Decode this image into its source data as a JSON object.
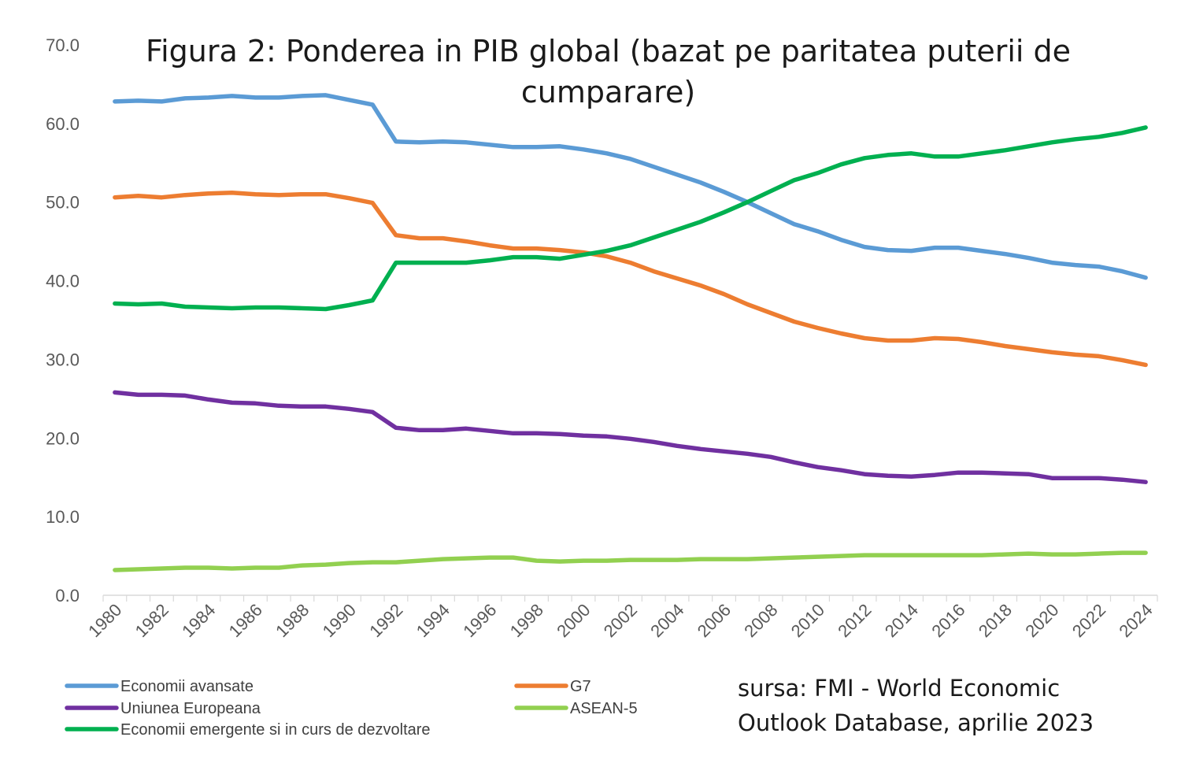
{
  "chart_data": {
    "type": "line",
    "title": "Figura 2: Ponderea in PIB global (bazat pe paritatea puterii de cumparare)",
    "xlabel": "",
    "ylabel": "",
    "ylim": [
      0,
      70
    ],
    "yticks": [
      "0.0",
      "10.0",
      "20.0",
      "30.0",
      "40.0",
      "50.0",
      "60.0",
      "70.0"
    ],
    "xticks": [
      "1980",
      "1982",
      "1984",
      "1986",
      "1988",
      "1990",
      "1992",
      "1994",
      "1996",
      "1998",
      "2000",
      "2002",
      "2004",
      "2006",
      "2008",
      "2010",
      "2012",
      "2014",
      "2016",
      "2018",
      "2020",
      "2022",
      "2024"
    ],
    "x": [
      1980,
      1981,
      1982,
      1983,
      1984,
      1985,
      1986,
      1987,
      1988,
      1989,
      1990,
      1991,
      1992,
      1993,
      1994,
      1995,
      1996,
      1997,
      1998,
      1999,
      2000,
      2001,
      2002,
      2003,
      2004,
      2005,
      2006,
      2007,
      2008,
      2009,
      2010,
      2011,
      2012,
      2013,
      2014,
      2015,
      2016,
      2017,
      2018,
      2019,
      2020,
      2021,
      2022,
      2023,
      2024
    ],
    "grid": false,
    "legend_position": "bottom-left",
    "series": [
      {
        "name": "Economii avansate",
        "color": "#5B9BD5",
        "values": [
          62.8,
          62.9,
          62.8,
          63.2,
          63.3,
          63.5,
          63.3,
          63.3,
          63.5,
          63.6,
          63.0,
          62.4,
          57.7,
          57.6,
          57.7,
          57.6,
          57.3,
          57.0,
          57.0,
          57.1,
          56.7,
          56.2,
          55.5,
          54.5,
          53.5,
          52.5,
          51.3,
          50.0,
          48.6,
          47.2,
          46.3,
          45.2,
          44.3,
          43.9,
          43.8,
          44.2,
          44.2,
          43.8,
          43.4,
          42.9,
          42.3,
          42.0,
          41.8,
          41.2,
          40.4
        ]
      },
      {
        "name": "G7",
        "color": "#ED7D31",
        "values": [
          50.6,
          50.8,
          50.6,
          50.9,
          51.1,
          51.2,
          51.0,
          50.9,
          51.0,
          51.0,
          50.5,
          49.9,
          45.8,
          45.4,
          45.4,
          45.0,
          44.5,
          44.1,
          44.1,
          43.9,
          43.6,
          43.1,
          42.3,
          41.2,
          40.3,
          39.4,
          38.3,
          37.0,
          35.9,
          34.8,
          34.0,
          33.3,
          32.7,
          32.4,
          32.4,
          32.7,
          32.6,
          32.2,
          31.7,
          31.3,
          30.9,
          30.6,
          30.4,
          29.9,
          29.3
        ]
      },
      {
        "name": "Uniunea Europeana",
        "color": "#7030A0",
        "values": [
          25.8,
          25.5,
          25.5,
          25.4,
          24.9,
          24.5,
          24.4,
          24.1,
          24.0,
          24.0,
          23.7,
          23.3,
          21.3,
          21.0,
          21.0,
          21.2,
          20.9,
          20.6,
          20.6,
          20.5,
          20.3,
          20.2,
          19.9,
          19.5,
          19.0,
          18.6,
          18.3,
          18.0,
          17.6,
          16.9,
          16.3,
          15.9,
          15.4,
          15.2,
          15.1,
          15.3,
          15.6,
          15.6,
          15.5,
          15.4,
          14.9,
          14.9,
          14.9,
          14.7,
          14.4
        ]
      },
      {
        "name": "ASEAN-5",
        "color": "#92D050",
        "values": [
          3.2,
          3.3,
          3.4,
          3.5,
          3.5,
          3.4,
          3.5,
          3.5,
          3.8,
          3.9,
          4.1,
          4.2,
          4.2,
          4.4,
          4.6,
          4.7,
          4.8,
          4.8,
          4.4,
          4.3,
          4.4,
          4.4,
          4.5,
          4.5,
          4.5,
          4.6,
          4.6,
          4.6,
          4.7,
          4.8,
          4.9,
          5.0,
          5.1,
          5.1,
          5.1,
          5.1,
          5.1,
          5.1,
          5.2,
          5.3,
          5.2,
          5.2,
          5.3,
          5.4,
          5.4
        ]
      },
      {
        "name": "Economii emergente si in curs de dezvoltare",
        "color": "#00B050",
        "values": [
          37.1,
          37.0,
          37.1,
          36.7,
          36.6,
          36.5,
          36.6,
          36.6,
          36.5,
          36.4,
          36.9,
          37.5,
          42.3,
          42.3,
          42.3,
          42.3,
          42.6,
          43.0,
          43.0,
          42.8,
          43.3,
          43.8,
          44.5,
          45.5,
          46.5,
          47.5,
          48.7,
          50.0,
          51.4,
          52.8,
          53.7,
          54.8,
          55.6,
          56.0,
          56.2,
          55.8,
          55.8,
          56.2,
          56.6,
          57.1,
          57.6,
          58.0,
          58.3,
          58.8,
          59.5
        ]
      }
    ],
    "source_note": [
      "sursa: FMI - World Economic",
      "Outlook Database, aprilie 2023"
    ]
  }
}
